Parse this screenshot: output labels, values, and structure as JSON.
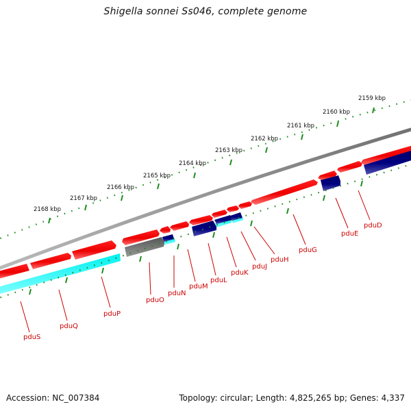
{
  "title": "Shigella sonnei Ss046, complete genome",
  "footer": {
    "accession": "Accession: NC_007384",
    "summary": "Topology: circular; Length: 4,825,265 bp; Genes: 4,337"
  },
  "colors": {
    "backbone": "#888888",
    "forward_gene": "#ff0000",
    "reverse_gene": "#000080",
    "cds_highlight": "#00ffff",
    "pseudo_gene": "#666666",
    "scale_ticks": "#1e8c1e",
    "gene_label": "#cc0000"
  },
  "ruler": {
    "labels": [
      "2168 kbp",
      "2167 kbp",
      "2166 kbp",
      "2165 kbp",
      "2164 kbp",
      "2163 kbp",
      "2162 kbp",
      "2161 kbp",
      "2160 kbp",
      "2159 kbp"
    ]
  },
  "genes": [
    {
      "label": "pduS"
    },
    {
      "label": "pduQ"
    },
    {
      "label": "pduP"
    },
    {
      "label": "pduO"
    },
    {
      "label": "pduN"
    },
    {
      "label": "pduM"
    },
    {
      "label": "pduL"
    },
    {
      "label": "pduK"
    },
    {
      "label": "pduJ"
    },
    {
      "label": "pduH"
    },
    {
      "label": "pduG"
    },
    {
      "label": "pduE"
    },
    {
      "label": "pduD"
    }
  ]
}
